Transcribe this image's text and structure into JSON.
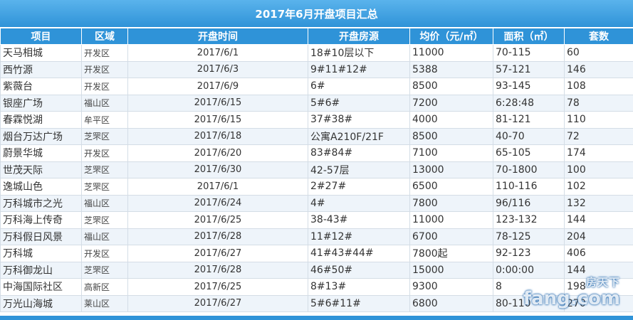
{
  "title": "2017年6月开盘项目汇总",
  "headers": [
    "项目",
    "区域",
    "开盘时间",
    "开盘房源",
    "均价（元/㎡）",
    "面积（㎡）",
    "套数"
  ],
  "rows": [
    [
      "天马相城",
      "开发区",
      "2017/6/1",
      "18#10层以下",
      "11000",
      "70-115",
      "60"
    ],
    [
      "西竹源",
      "开发区",
      "2017/6/3",
      "9#11#12#",
      "5388",
      "57-121",
      "146"
    ],
    [
      "紫薇台",
      "开发区",
      "2017/6/9",
      "6#",
      "8500",
      "93-145",
      "108"
    ],
    [
      "银座广场",
      "福山区",
      "2017/6/15",
      "5#6#",
      "7200",
      "6:28:48",
      "78"
    ],
    [
      "春霖悦湖",
      "牟平区",
      "2017/6/15",
      "37#38#",
      "4000",
      "81-121",
      "110"
    ],
    [
      "烟台万达广场",
      "芝罘区",
      "2017/6/18",
      "公寓A210F/21F",
      "8500",
      "40-70",
      "72"
    ],
    [
      "蔚景华城",
      "开发区",
      "2017/6/20",
      "83#84#",
      "7100",
      "65-105",
      "174"
    ],
    [
      "世茂天际",
      "芝罘区",
      "2017/6/30",
      "42-57层",
      "13000",
      "70-1800",
      "100"
    ],
    [
      "逸城山色",
      "芝罘区",
      "2017/6/1",
      "2#27#",
      "6500",
      "110-116",
      "102"
    ],
    [
      "万科城市之光",
      "福山区",
      "2017/6/24",
      "4#",
      "7800",
      "96/116",
      "132"
    ],
    [
      "万科海上传奇",
      "芝罘区",
      "2017/6/25",
      "38-43#",
      "11000",
      "123-132",
      "144"
    ],
    [
      "万科假日风景",
      "福山区",
      "2017/6/28",
      "11#12#",
      "6700",
      "78-125",
      "204"
    ],
    [
      "万科城",
      "开发区",
      "2017/6/27",
      "41#43#44#",
      "7800起",
      "92-123",
      "406"
    ],
    [
      "万科御龙山",
      "芝罘区",
      "2017/6/28",
      "46#50#",
      "15000",
      "0:00:00",
      "144"
    ],
    [
      "中海国际社区",
      "高新区",
      "2017/6/25",
      "8#13#",
      "9300",
      "8",
      "198"
    ],
    [
      "万光山海城",
      "莱山区",
      "2017/6/27",
      "5#6#11#",
      "6800",
      "80-110",
      "270"
    ]
  ],
  "watermark": {
    "line1": "房天下",
    "line2": "fang.com"
  },
  "colors": {
    "header": "#2f93d8",
    "stripe": "#eef4fa"
  }
}
